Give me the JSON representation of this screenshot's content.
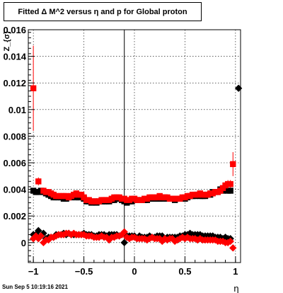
{
  "title": "Fitted Δ M^2 versus η and p for Global proton",
  "datestamp": "Sun Sep  5 10:19:16 2021",
  "chart_data": {
    "type": "scatter",
    "title": "Fitted Δ M^2 versus η and p for Global proton",
    "xlabel": "η",
    "ylabel": "Z_{σ}",
    "xlim": [
      -1.05,
      1.05
    ],
    "ylim": [
      -0.0015,
      0.016
    ],
    "x_ticks": [
      -1,
      -0.5,
      0,
      0.5,
      1
    ],
    "x_tick_labels": [
      "−1",
      "−0.5",
      "0",
      "0.5",
      "1"
    ],
    "y_ticks": [
      0,
      0.002,
      0.004,
      0.006,
      0.008,
      0.01,
      0.012,
      0.014,
      0.016
    ],
    "y_tick_labels": [
      "0",
      "0.002",
      "0.004",
      "0.006",
      "0.008",
      "0.01",
      "0.012",
      "0.014",
      "0.016"
    ],
    "grid": true,
    "vertical_line_x": -0.1,
    "colors": {
      "black": "#000000",
      "red": "#ff0000"
    },
    "series": [
      {
        "marker": "square",
        "color": "#000000",
        "x": [
          -1.0,
          -0.975,
          -0.95,
          -0.925,
          -0.9,
          -0.875,
          -0.85,
          -0.825,
          -0.8,
          -0.775,
          -0.75,
          -0.725,
          -0.7,
          -0.675,
          -0.65,
          -0.625,
          -0.6,
          -0.575,
          -0.55,
          -0.525,
          -0.5,
          -0.475,
          -0.45,
          -0.425,
          -0.4,
          -0.375,
          -0.35,
          -0.325,
          -0.3,
          -0.275,
          -0.25,
          -0.225,
          -0.2,
          -0.175,
          -0.15,
          -0.125,
          -0.1,
          -0.075,
          -0.05,
          -0.025,
          0.0,
          0.025,
          0.05,
          0.075,
          0.1,
          0.125,
          0.15,
          0.175,
          0.2,
          0.225,
          0.25,
          0.275,
          0.3,
          0.325,
          0.35,
          0.375,
          0.4,
          0.425,
          0.45,
          0.475,
          0.5,
          0.525,
          0.55,
          0.575,
          0.6,
          0.625,
          0.65,
          0.675,
          0.7,
          0.725,
          0.75,
          0.775,
          0.8,
          0.825,
          0.85,
          0.875,
          0.9,
          0.925,
          0.95
        ],
        "y": [
          0.0039,
          0.0038,
          0.0038,
          0.0039,
          0.0038,
          0.0037,
          0.0036,
          0.0035,
          0.0034,
          0.0034,
          0.0034,
          0.0034,
          0.0033,
          0.0033,
          0.0034,
          0.0034,
          0.0035,
          0.0034,
          0.0034,
          0.0035,
          0.0033,
          0.0031,
          0.0031,
          0.003,
          0.0031,
          0.003,
          0.0031,
          0.0031,
          0.0031,
          0.0031,
          0.0031,
          0.0032,
          0.0032,
          0.0033,
          0.0033,
          0.0032,
          0.0031,
          0.003,
          0.0031,
          0.0031,
          0.0032,
          0.0032,
          0.0032,
          0.0032,
          0.0032,
          0.0032,
          0.0033,
          0.0033,
          0.0033,
          0.0033,
          0.0033,
          0.0033,
          0.0034,
          0.0033,
          0.0033,
          0.0033,
          0.0032,
          0.0033,
          0.0033,
          0.0033,
          0.0033,
          0.0034,
          0.0035,
          0.0035,
          0.0035,
          0.0036,
          0.0035,
          0.0035,
          0.0035,
          0.0036,
          0.0036,
          0.0038,
          0.0038,
          0.0038,
          0.004,
          0.0039,
          0.004,
          0.0039,
          0.0039
        ]
      },
      {
        "marker": "square",
        "color": "#ff0000",
        "x": [
          -1.0,
          -0.95,
          -0.9,
          -0.875,
          -0.85,
          -0.825,
          -0.8,
          -0.775,
          -0.75,
          -0.725,
          -0.7,
          -0.675,
          -0.65,
          -0.625,
          -0.6,
          -0.575,
          -0.55,
          -0.525,
          -0.5,
          -0.475,
          -0.45,
          -0.425,
          -0.4,
          -0.375,
          -0.35,
          -0.325,
          -0.3,
          -0.275,
          -0.25,
          -0.225,
          -0.2,
          -0.175,
          -0.15,
          -0.125,
          -0.1,
          -0.075,
          -0.05,
          -0.025,
          0.0,
          0.025,
          0.05,
          0.075,
          0.1,
          0.125,
          0.15,
          0.175,
          0.2,
          0.225,
          0.25,
          0.275,
          0.3,
          0.325,
          0.35,
          0.375,
          0.4,
          0.425,
          0.45,
          0.475,
          0.5,
          0.525,
          0.55,
          0.575,
          0.6,
          0.625,
          0.65,
          0.675,
          0.7,
          0.725,
          0.75,
          0.775,
          0.8,
          0.825,
          0.85,
          0.875,
          0.9,
          0.925,
          0.95,
          0.975
        ],
        "y": [
          0.0116,
          0.0046,
          0.0039,
          0.0038,
          0.0038,
          0.0037,
          0.0036,
          0.0035,
          0.0035,
          0.0035,
          0.0035,
          0.0035,
          0.0034,
          0.0035,
          0.0036,
          0.0037,
          0.0036,
          0.0036,
          0.0034,
          0.0032,
          0.0032,
          0.0031,
          0.0031,
          0.0031,
          0.0031,
          0.0032,
          0.0032,
          0.0032,
          0.0032,
          0.0033,
          0.0034,
          0.0034,
          0.0034,
          0.0033,
          0.0033,
          0.0032,
          0.0032,
          0.0033,
          0.0033,
          0.0032,
          0.0032,
          0.0032,
          0.0033,
          0.0033,
          0.0034,
          0.0034,
          0.0034,
          0.0034,
          0.0035,
          0.0034,
          0.0034,
          0.0034,
          0.0033,
          0.0033,
          0.0033,
          0.0033,
          0.0033,
          0.0034,
          0.0034,
          0.0035,
          0.0035,
          0.0036,
          0.0036,
          0.0036,
          0.0037,
          0.0036,
          0.0036,
          0.0036,
          0.0037,
          0.0037,
          0.0038,
          0.0038,
          0.0039,
          0.0041,
          0.0043,
          0.0044,
          0.0044,
          0.0059
        ],
        "yerr": [
          0.0032,
          0.0003,
          0.0002,
          0.0001,
          0.0001,
          0.0001,
          0.0001,
          0.0001,
          0.0001,
          0.0001,
          0.0001,
          0.0001,
          0.0001,
          0.0001,
          0.0001,
          0.0001,
          0.0001,
          0.0001,
          0.0001,
          0.0001,
          0.0001,
          0.0001,
          0.0001,
          0.0001,
          0.0001,
          0.0001,
          0.0001,
          0.0001,
          0.0001,
          0.0001,
          0.0001,
          0.0001,
          0.0001,
          0.0001,
          0.0001,
          0.0001,
          0.0001,
          0.0001,
          0.0001,
          0.0001,
          0.0001,
          0.0001,
          0.0001,
          0.0001,
          0.0001,
          0.0001,
          0.0001,
          0.0001,
          0.0001,
          0.0001,
          0.0001,
          0.0001,
          0.0001,
          0.0001,
          0.0001,
          0.0001,
          0.0001,
          0.0001,
          0.0001,
          0.0001,
          0.0001,
          0.0001,
          0.0001,
          0.0001,
          0.0001,
          0.0001,
          0.0001,
          0.0001,
          0.0001,
          0.0001,
          0.0001,
          0.0001,
          0.0001,
          0.0002,
          0.0003,
          0.0003,
          0.0003,
          0.0009
        ]
      },
      {
        "marker": "diamond",
        "color": "#000000",
        "x": [
          -1.0,
          -0.975,
          -0.95,
          -0.925,
          -0.9,
          -0.875,
          -0.85,
          -0.825,
          -0.8,
          -0.775,
          -0.75,
          -0.725,
          -0.7,
          -0.675,
          -0.65,
          -0.625,
          -0.6,
          -0.575,
          -0.55,
          -0.525,
          -0.5,
          -0.475,
          -0.45,
          -0.425,
          -0.4,
          -0.375,
          -0.35,
          -0.325,
          -0.3,
          -0.275,
          -0.25,
          -0.225,
          -0.2,
          -0.175,
          -0.15,
          -0.125,
          -0.1,
          -0.075,
          -0.05,
          -0.025,
          0.0,
          0.025,
          0.05,
          0.075,
          0.1,
          0.125,
          0.15,
          0.175,
          0.2,
          0.225,
          0.25,
          0.275,
          0.3,
          0.325,
          0.35,
          0.375,
          0.4,
          0.425,
          0.45,
          0.475,
          0.5,
          0.525,
          0.55,
          0.575,
          0.6,
          0.625,
          0.65,
          0.675,
          0.7,
          0.725,
          0.75,
          0.775,
          0.8,
          0.825,
          0.85,
          0.875,
          0.9,
          0.925,
          0.95,
          1.03
        ],
        "y": [
          0.0006,
          0.0006,
          0.0009,
          0.0005,
          0.0007,
          0.0003,
          0.0004,
          0.0004,
          0.0004,
          0.0006,
          0.0006,
          0.0006,
          0.0007,
          0.0006,
          0.0007,
          0.0006,
          0.0006,
          0.0006,
          0.0006,
          0.0006,
          0.0007,
          0.0006,
          0.0006,
          0.0006,
          0.0005,
          0.0005,
          0.0006,
          0.0006,
          0.0006,
          0.0005,
          0.0006,
          0.0006,
          0.0006,
          0.0006,
          0.0005,
          0.0006,
          0.0,
          0.0005,
          0.0005,
          0.0005,
          0.0005,
          0.0003,
          0.0005,
          0.0004,
          0.0004,
          0.0004,
          0.0005,
          0.0004,
          0.0004,
          0.0005,
          0.0005,
          0.0005,
          0.0003,
          0.0004,
          0.0004,
          0.0004,
          0.0004,
          0.0004,
          0.0005,
          0.0005,
          0.0006,
          0.0006,
          0.0007,
          0.0006,
          0.0006,
          0.0006,
          0.0006,
          0.0005,
          0.0005,
          0.0005,
          0.0005,
          0.0005,
          0.0004,
          0.0004,
          0.0004,
          0.0003,
          0.0004,
          0.0003,
          0.0003,
          0.0116
        ]
      },
      {
        "marker": "diamond",
        "color": "#ff0000",
        "x": [
          -1.0,
          -0.975,
          -0.95,
          -0.925,
          -0.9,
          -0.875,
          -0.85,
          -0.825,
          -0.8,
          -0.775,
          -0.75,
          -0.725,
          -0.7,
          -0.675,
          -0.65,
          -0.625,
          -0.6,
          -0.575,
          -0.55,
          -0.525,
          -0.5,
          -0.475,
          -0.45,
          -0.425,
          -0.4,
          -0.375,
          -0.35,
          -0.325,
          -0.3,
          -0.275,
          -0.25,
          -0.225,
          -0.2,
          -0.175,
          -0.15,
          -0.125,
          -0.1,
          -0.075,
          -0.05,
          -0.025,
          0.0,
          0.025,
          0.05,
          0.075,
          0.1,
          0.125,
          0.15,
          0.175,
          0.2,
          0.225,
          0.25,
          0.275,
          0.3,
          0.325,
          0.35,
          0.375,
          0.4,
          0.425,
          0.45,
          0.475,
          0.5,
          0.525,
          0.55,
          0.575,
          0.6,
          0.625,
          0.65,
          0.675,
          0.7,
          0.725,
          0.75,
          0.775,
          0.8,
          0.825,
          0.85,
          0.875,
          0.9,
          0.925,
          0.95,
          0.975
        ],
        "y": [
          0.0003,
          0.0005,
          0.0003,
          0.0005,
          0.0,
          0.0002,
          0.0002,
          0.0004,
          0.0004,
          0.0005,
          0.0006,
          0.0006,
          0.0006,
          0.0007,
          0.0007,
          0.0006,
          0.0007,
          0.0006,
          0.0006,
          0.0006,
          0.0006,
          0.0005,
          0.0005,
          0.0005,
          0.0004,
          0.0004,
          0.0004,
          0.0005,
          0.0004,
          0.0004,
          0.0002,
          0.0004,
          0.0004,
          0.0005,
          0.0005,
          0.0006,
          0.0008,
          0.0004,
          0.0003,
          0.0004,
          0.0004,
          0.0003,
          0.0003,
          0.0003,
          0.0003,
          0.0002,
          0.0003,
          0.0004,
          0.0003,
          0.0003,
          0.0003,
          0.0001,
          0.0003,
          0.0002,
          0.0003,
          0.0003,
          0.0001,
          0.0002,
          0.0003,
          0.0004,
          0.0003,
          0.0004,
          0.0003,
          0.0003,
          0.0003,
          0.0002,
          0.0003,
          0.0002,
          0.0002,
          0.0002,
          0.0002,
          0.0002,
          0.0002,
          0.0001,
          0.0001,
          0.0001,
          0.0,
          0.0,
          0.0001,
          -0.0004
        ]
      }
    ]
  }
}
